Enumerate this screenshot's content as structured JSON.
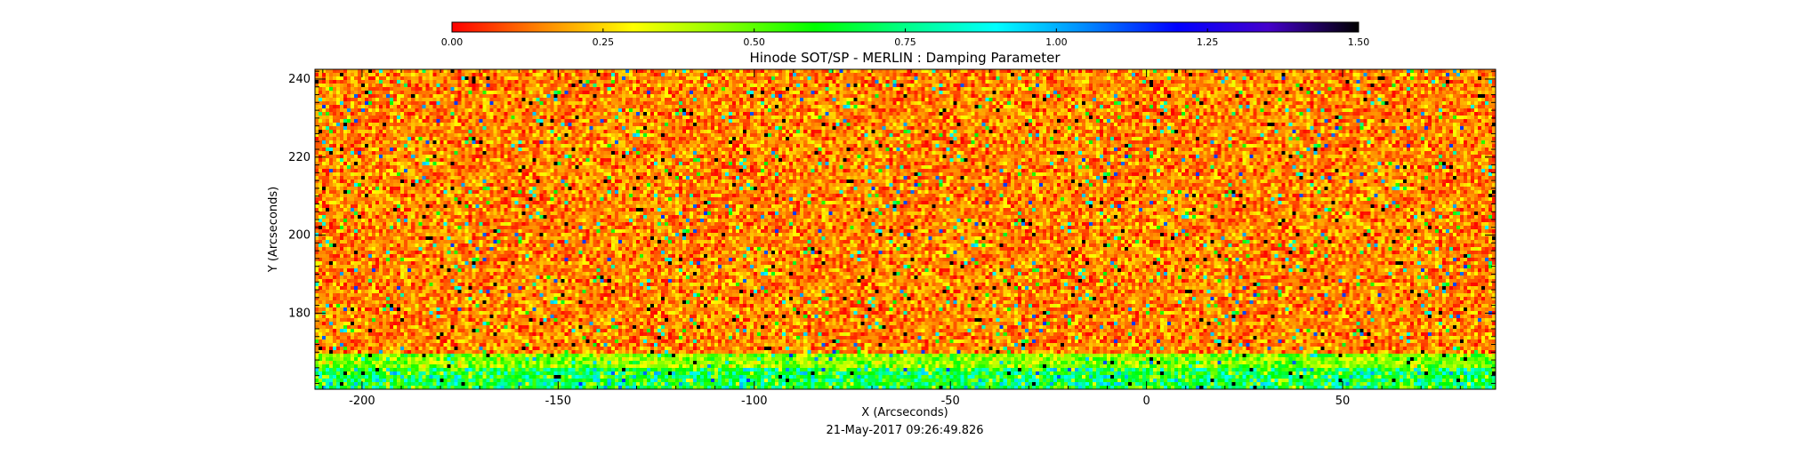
{
  "chart_data": {
    "type": "heatmap",
    "title": "Hinode SOT/SP - MERLIN : Damping Parameter",
    "xlabel": "X (Arcseconds)",
    "ylabel": "Y (Arcseconds)",
    "footer": "21-May-2017 09:26:49.826",
    "xlim": [
      -212,
      89
    ],
    "ylim": [
      160.5,
      242.5
    ],
    "x_ticks": [
      -200,
      -150,
      -100,
      -50,
      0,
      50
    ],
    "x_tick_labels": [
      "-200",
      "-150",
      "-100",
      "-50",
      "0",
      "50"
    ],
    "y_ticks": [
      180,
      200,
      220,
      240
    ],
    "y_tick_labels": [
      "180",
      "200",
      "220",
      "240"
    ],
    "colorbar": {
      "min": 0.0,
      "max": 1.5,
      "ticks": [
        0.0,
        0.25,
        0.5,
        0.75,
        1.0,
        1.25,
        1.5
      ],
      "tick_labels": [
        "0.00",
        "0.25",
        "0.50",
        "0.75",
        "1.00",
        "1.25",
        "1.50"
      ],
      "colormap": [
        "#ff0000",
        "#ff8800",
        "#ffff00",
        "#88ff00",
        "#00ff00",
        "#00ff88",
        "#00ffff",
        "#0088ff",
        "#0000ff",
        "#4400cc",
        "#000000"
      ]
    },
    "field": {
      "description_rows": [
        {
          "y_range": [
            170,
            242.5
          ],
          "typical_value": 0.15,
          "spread": 0.12
        },
        {
          "y_range": [
            166,
            170
          ],
          "typical_value": 0.45,
          "spread": 0.15
        },
        {
          "y_range": [
            160.5,
            166
          ],
          "typical_value": 0.65,
          "spread": 0.25
        }
      ]
    }
  }
}
